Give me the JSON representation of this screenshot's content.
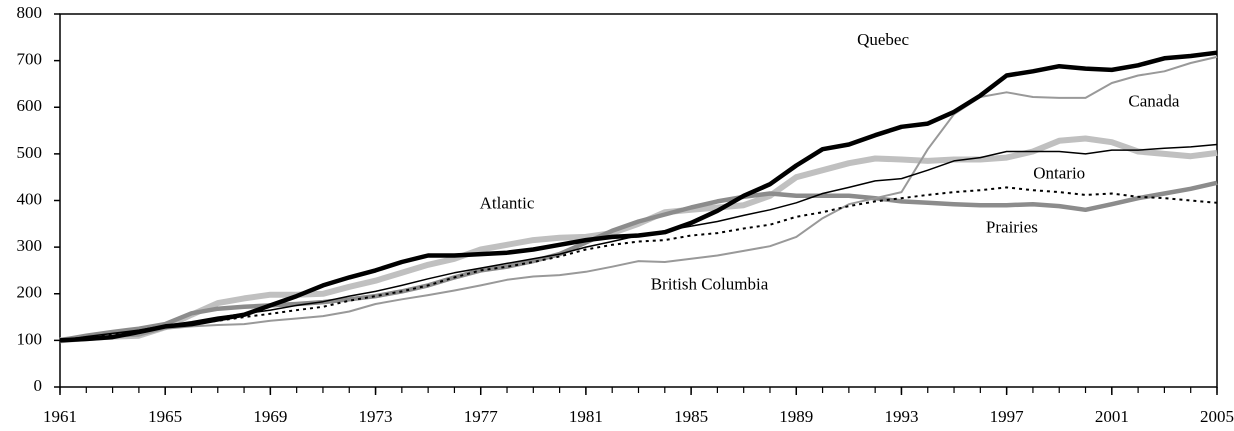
{
  "chart_data": {
    "type": "line",
    "x": [
      1961,
      1962,
      1963,
      1964,
      1965,
      1966,
      1967,
      1968,
      1969,
      1970,
      1971,
      1972,
      1973,
      1974,
      1975,
      1976,
      1977,
      1978,
      1979,
      1980,
      1981,
      1982,
      1983,
      1984,
      1985,
      1986,
      1987,
      1988,
      1989,
      1990,
      1991,
      1992,
      1993,
      1994,
      1995,
      1996,
      1997,
      1998,
      1999,
      2000,
      2001,
      2002,
      2003,
      2004,
      2005
    ],
    "xlim": [
      1961,
      2005
    ],
    "xticks": [
      1961,
      1965,
      1969,
      1973,
      1977,
      1981,
      1985,
      1989,
      1993,
      1997,
      2001,
      2005
    ],
    "ylim": [
      0,
      800
    ],
    "yticks": [
      0,
      100,
      200,
      300,
      400,
      500,
      600,
      700,
      800
    ],
    "grid": false,
    "series": [
      {
        "name": "Atlantic",
        "color": "#c0c0c0",
        "width": 6,
        "dashed": false,
        "values": [
          100,
          105,
          108,
          110,
          128,
          155,
          180,
          190,
          198,
          198,
          200,
          215,
          228,
          245,
          262,
          275,
          295,
          305,
          315,
          320,
          322,
          330,
          350,
          375,
          380,
          385,
          390,
          410,
          450,
          465,
          480,
          490,
          488,
          485,
          488,
          488,
          492,
          505,
          528,
          533,
          525,
          505,
          500,
          495,
          502
        ]
      },
      {
        "name": "Prairies",
        "color": "#8c8c8c",
        "width": 4.5,
        "dashed": false,
        "values": [
          100,
          110,
          118,
          125,
          135,
          158,
          168,
          172,
          175,
          178,
          182,
          188,
          195,
          205,
          218,
          235,
          250,
          258,
          270,
          285,
          310,
          335,
          355,
          370,
          385,
          398,
          408,
          415,
          410,
          410,
          410,
          405,
          398,
          395,
          392,
          390,
          390,
          392,
          388,
          380,
          392,
          405,
          415,
          425,
          438
        ]
      },
      {
        "name": "British Columbia",
        "color": "#999999",
        "width": 2,
        "dashed": false,
        "values": [
          100,
          105,
          108,
          110,
          125,
          130,
          133,
          135,
          142,
          147,
          152,
          162,
          178,
          188,
          197,
          207,
          218,
          230,
          237,
          240,
          247,
          258,
          270,
          268,
          275,
          282,
          292,
          302,
          322,
          362,
          392,
          405,
          418,
          510,
          585,
          622,
          632,
          622,
          620,
          620,
          652,
          668,
          677,
          695,
          708
        ]
      },
      {
        "name": "Ontario",
        "color": "#000000",
        "width": 2,
        "dashed": true,
        "values": [
          100,
          107,
          113,
          120,
          128,
          135,
          142,
          150,
          157,
          165,
          172,
          185,
          195,
          205,
          218,
          235,
          250,
          258,
          268,
          280,
          295,
          305,
          312,
          315,
          325,
          330,
          340,
          348,
          365,
          375,
          388,
          398,
          405,
          412,
          418,
          422,
          428,
          422,
          418,
          412,
          415,
          408,
          405,
          400,
          395
        ]
      },
      {
        "name": "Canada",
        "color": "#000000",
        "width": 1.5,
        "dashed": false,
        "values": [
          100,
          108,
          115,
          122,
          132,
          140,
          150,
          157,
          165,
          175,
          183,
          195,
          205,
          218,
          232,
          245,
          255,
          265,
          275,
          285,
          300,
          312,
          325,
          335,
          345,
          355,
          368,
          380,
          395,
          415,
          428,
          442,
          447,
          465,
          485,
          492,
          505,
          505,
          505,
          500,
          508,
          508,
          512,
          515,
          520
        ]
      },
      {
        "name": "Quebec",
        "color": "#000000",
        "width": 4.5,
        "dashed": false,
        "values": [
          100,
          103,
          107,
          118,
          130,
          135,
          145,
          155,
          175,
          195,
          218,
          235,
          250,
          268,
          282,
          282,
          285,
          288,
          295,
          305,
          315,
          322,
          325,
          332,
          352,
          378,
          410,
          435,
          475,
          510,
          520,
          540,
          558,
          565,
          590,
          625,
          668,
          677,
          688,
          683,
          680,
          690,
          705,
          710,
          717
        ]
      }
    ]
  }
}
